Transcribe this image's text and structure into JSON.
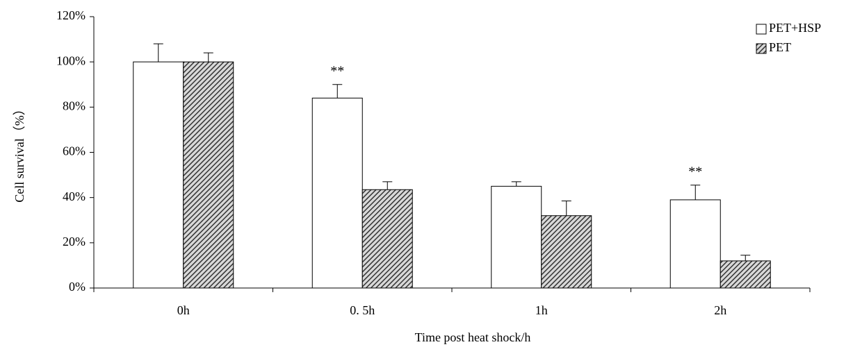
{
  "chart_data": {
    "type": "bar",
    "x_label": "Time post heat shock/h",
    "y_label": "Cell survival（%）",
    "categories": [
      "0h",
      "0. 5h",
      "1h",
      "2h"
    ],
    "series": [
      {
        "name": "PET+HSP",
        "color": "#ffffff",
        "values": [
          100,
          84,
          45,
          39
        ],
        "errors": [
          8,
          6,
          2,
          6.5
        ]
      },
      {
        "name": "PET",
        "color": "#555555",
        "pattern": "hatch",
        "values": [
          100,
          43.5,
          32,
          12
        ],
        "errors": [
          4,
          3.5,
          6.5,
          2.5
        ]
      }
    ],
    "annotations": [
      {
        "text": "**",
        "category": "0. 5h",
        "series": "PET+HSP"
      },
      {
        "text": "**",
        "category": "2h",
        "series": "PET+HSP"
      }
    ],
    "ylim": [
      0,
      120
    ],
    "yticks": [
      {
        "value": 0,
        "label": "0%"
      },
      {
        "value": 20,
        "label": "20%"
      },
      {
        "value": 40,
        "label": "40%"
      },
      {
        "value": 60,
        "label": "60%"
      },
      {
        "value": 80,
        "label": "80%"
      },
      {
        "value": 100,
        "label": "100%"
      },
      {
        "value": 120,
        "label": "120%"
      }
    ],
    "legend": "top-right"
  }
}
